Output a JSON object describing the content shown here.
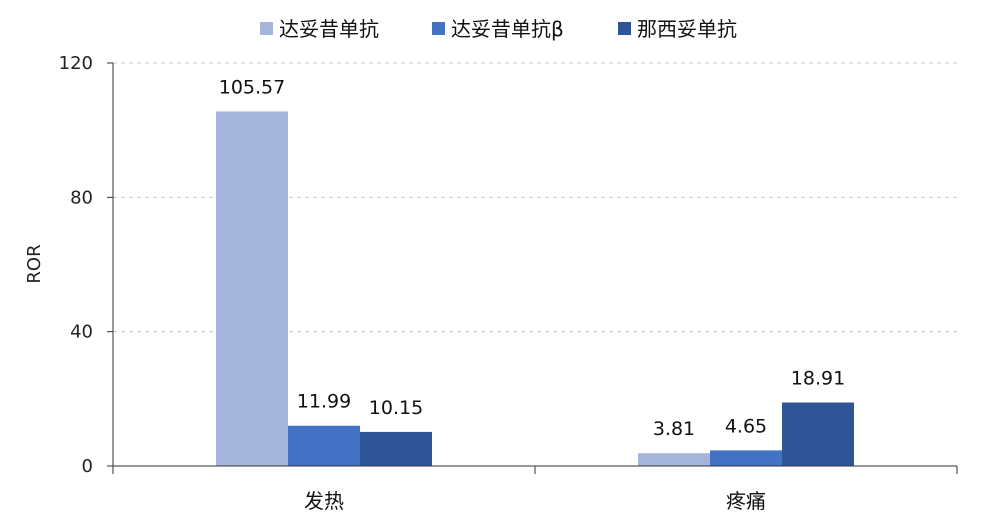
{
  "chart_data": {
    "type": "bar",
    "categories": [
      "发热",
      "疼痛"
    ],
    "series": [
      {
        "name": "达妥昔单抗",
        "values": [
          105.57,
          3.81
        ],
        "color": "#A5B4DA"
      },
      {
        "name": "达妥昔单抗β",
        "values": [
          11.99,
          4.65
        ],
        "color": "#4472C4"
      },
      {
        "name": "那西妥单抗",
        "values": [
          10.15,
          18.91
        ],
        "color": "#2F5597"
      }
    ],
    "data_labels": [
      [
        "105.57",
        "3.81"
      ],
      [
        "11.99",
        "4.65"
      ],
      [
        "10.15",
        "18.91"
      ]
    ],
    "ylabel": "ROR",
    "xlabel": "",
    "ylim": [
      0,
      120
    ],
    "yticks": [
      "0",
      "40",
      "80",
      "120"
    ],
    "grid": true,
    "legend_position": "top-center"
  }
}
